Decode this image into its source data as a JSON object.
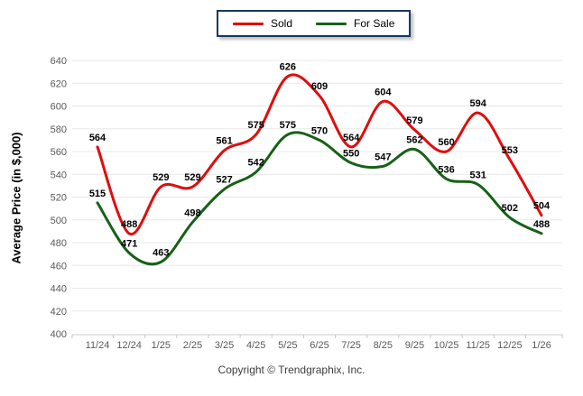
{
  "legend": {
    "border_color": "#17375e"
  },
  "footer": {
    "copyright": "Copyright © Trendgraphix, Inc."
  },
  "chart_data": {
    "type": "line",
    "title": "",
    "xlabel": "",
    "ylabel": "Average Price (in $,000)",
    "categories": [
      "11/24",
      "12/24",
      "1/25",
      "2/25",
      "3/25",
      "4/25",
      "5/25",
      "6/25",
      "7/25",
      "8/25",
      "9/25",
      "10/25",
      "11/25",
      "12/25",
      "1/26"
    ],
    "series": [
      {
        "name": "Sold",
        "color": "#e00d0d",
        "values": [
          564,
          488,
          529,
          529,
          561,
          575,
          626,
          609,
          564,
          604,
          579,
          560,
          594,
          553,
          504
        ]
      },
      {
        "name": "For Sale",
        "color": "#166116",
        "values": [
          515,
          471,
          463,
          498,
          527,
          542,
          575,
          570,
          550,
          547,
          562,
          536,
          531,
          502,
          488
        ]
      }
    ],
    "ylim": [
      400,
      640
    ],
    "ytick_step": 20,
    "grid": true,
    "grid_color": "#e8e8e8",
    "axis_line_color": "#c9c9c9",
    "tick_label_color": "#595959",
    "data_label_color": "#000000",
    "legend_position": "top-center"
  }
}
